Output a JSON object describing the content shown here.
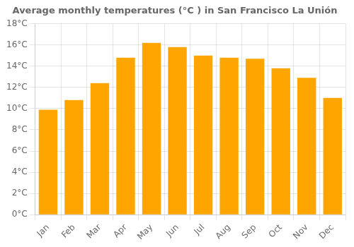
{
  "chart_data": {
    "type": "bar",
    "title": "Average monthly temperatures (°C ) in San Francisco La Unión",
    "categories": [
      "Jan",
      "Feb",
      "Mar",
      "Apr",
      "May",
      "Jun",
      "Jul",
      "Aug",
      "Sep",
      "Oct",
      "Nov",
      "Dec"
    ],
    "values": [
      9.9,
      10.8,
      12.4,
      14.8,
      16.2,
      15.8,
      15.0,
      14.8,
      14.7,
      13.8,
      12.9,
      11.0
    ],
    "color": "#FFA500",
    "ylim": [
      0,
      18
    ],
    "yticks": [
      {
        "value": 0,
        "label": "0°C"
      },
      {
        "value": 2,
        "label": "2°C"
      },
      {
        "value": 4,
        "label": "4°C"
      },
      {
        "value": 6,
        "label": "6°C"
      },
      {
        "value": 8,
        "label": "8°C"
      },
      {
        "value": 10,
        "label": "10°C"
      },
      {
        "value": 12,
        "label": "12°C"
      },
      {
        "value": 14,
        "label": "14°C"
      },
      {
        "value": 16,
        "label": "16°C"
      },
      {
        "value": 18,
        "label": "18°C"
      }
    ],
    "grid": true
  }
}
